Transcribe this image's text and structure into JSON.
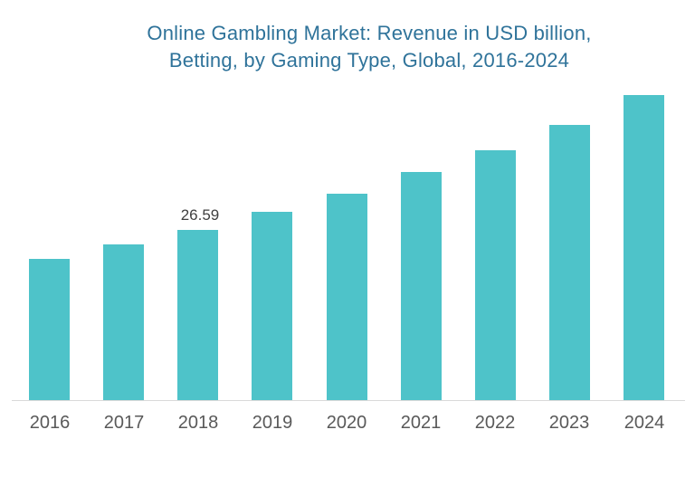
{
  "title": {
    "line1": "Online Gambling Market: Revenue in USD billion,",
    "line2": "Betting, by Gaming Type, Global, 2016-2024"
  },
  "colors": {
    "bar": "#4EC3C9",
    "title_text": "#2F739A",
    "axis_tick_label": "#595959",
    "data_label": "#404040",
    "axis_line": "#D9D9D9",
    "background": "#FFFFFF"
  },
  "chart_data": {
    "type": "bar",
    "title": "Online Gambling Market: Revenue in USD billion, Betting, by Gaming Type, Global, 2016-2024",
    "categories": [
      "2016",
      "2017",
      "2018",
      "2019",
      "2020",
      "2021",
      "2022",
      "2023",
      "2024"
    ],
    "values": [
      22.06,
      24.33,
      26.59,
      29.42,
      32.25,
      35.64,
      39.04,
      43.0,
      47.67
    ],
    "series_name": "Revenue (USD billion)",
    "value_labels": {
      "2018": "26.59"
    },
    "xlabel": "",
    "ylabel": "",
    "ylim": [
      0,
      50
    ],
    "grid": false,
    "legend": false,
    "y_axis_visible": false,
    "legend_position": "none"
  }
}
